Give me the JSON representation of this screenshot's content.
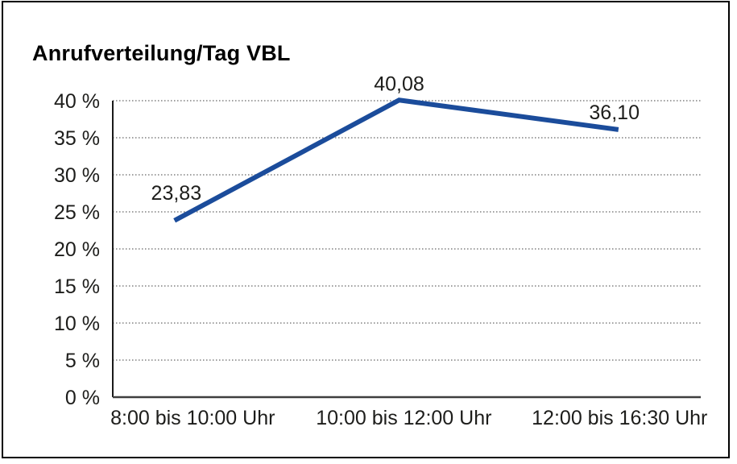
{
  "title": "Anrufverteilung/Tag VBL",
  "chart_data": {
    "type": "line",
    "title": "Anrufverteilung/Tag VBL",
    "categories": [
      "8:00 bis 10:00 Uhr",
      "10:00 bis 12:00 Uhr",
      "12:00 bis 16:30 Uhr"
    ],
    "series": [
      {
        "name": "Anrufverteilung/Tag VBL",
        "values": [
          23.83,
          40.08,
          36.1
        ]
      }
    ],
    "data_labels": [
      "23,83",
      "40,08",
      "36,10"
    ],
    "xlabel": "",
    "ylabel": "",
    "ylim": [
      0,
      40
    ],
    "y_ticks": [
      0,
      5,
      10,
      15,
      20,
      25,
      30,
      35,
      40
    ],
    "y_tick_labels": [
      "0 %",
      "5 %",
      "10 %",
      "15 %",
      "20 %",
      "25 %",
      "30 %",
      "35 %",
      "40 %"
    ],
    "grid": "horizontal-dotted",
    "legend": "none"
  },
  "colors": {
    "line": "#1B4C9B",
    "text": "#1D1D1B",
    "grid": "#666666",
    "y_axis": "#1A1A1A",
    "x_axis": "#3F3F3F",
    "border": "#000000",
    "background": "#FFFFFF"
  }
}
